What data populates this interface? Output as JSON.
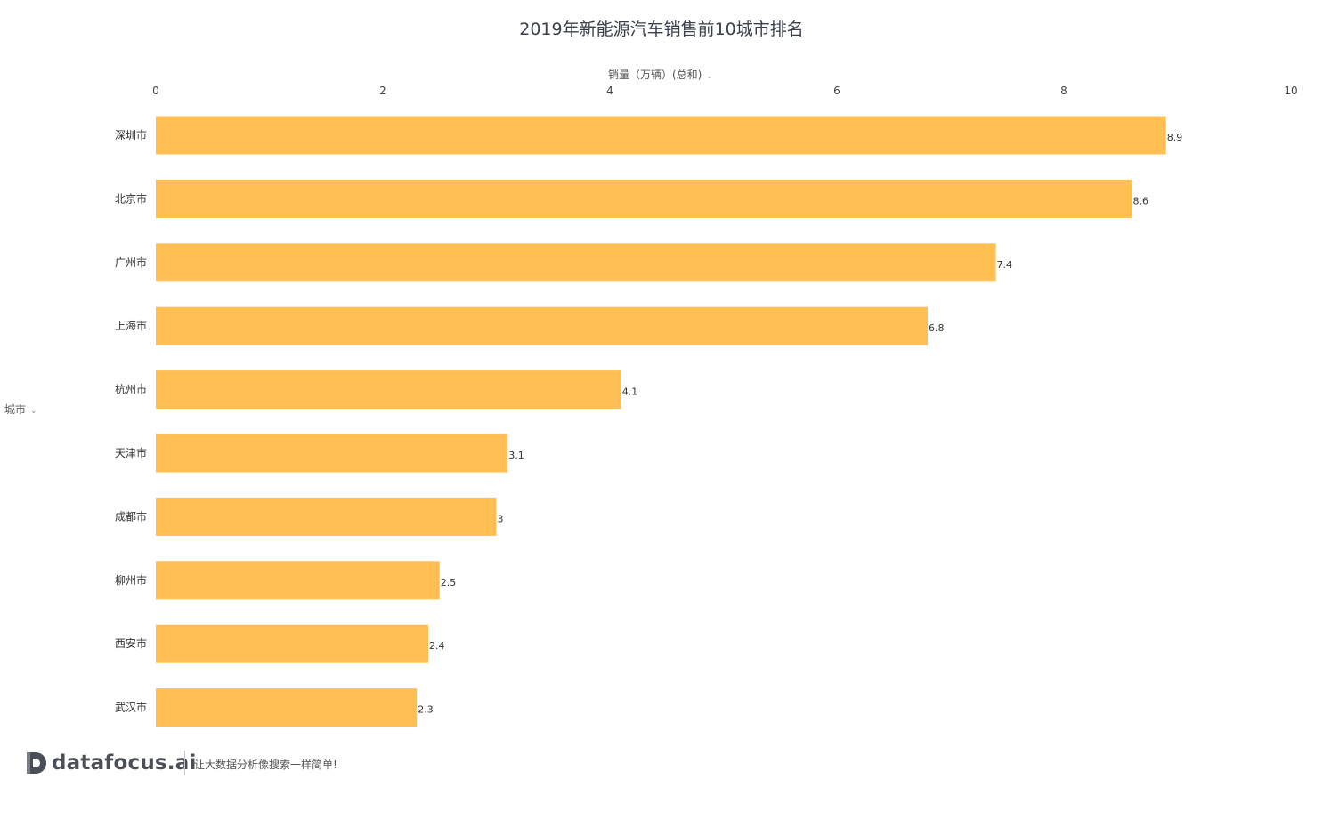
{
  "chart_data": {
    "type": "bar",
    "orientation": "horizontal",
    "title": "2019年新能源汽车销售前10城市排名",
    "xlabel": "销量（万辆）(总和)",
    "ylabel": "城市",
    "categories": [
      "深圳市",
      "北京市",
      "广州市",
      "上海市",
      "杭州市",
      "天津市",
      "成都市",
      "柳州市",
      "西安市",
      "武汉市"
    ],
    "values": [
      8.9,
      8.6,
      7.4,
      6.8,
      4.1,
      3.1,
      3,
      2.5,
      2.4,
      2.3
    ],
    "xlim": [
      0,
      10
    ],
    "xticks": [
      "0",
      "2",
      "4",
      "6",
      "8",
      "10"
    ],
    "axis_position": "top",
    "grid": false,
    "bar_color": "#FFBF52",
    "data_labels": true
  },
  "footer": {
    "logo_text": "datafocus.ai",
    "slogan": "让大数据分析像搜索一样简单!"
  },
  "icons": {
    "dropdown": "chevron-down-icon",
    "brand": "datafocus-logo-icon"
  }
}
